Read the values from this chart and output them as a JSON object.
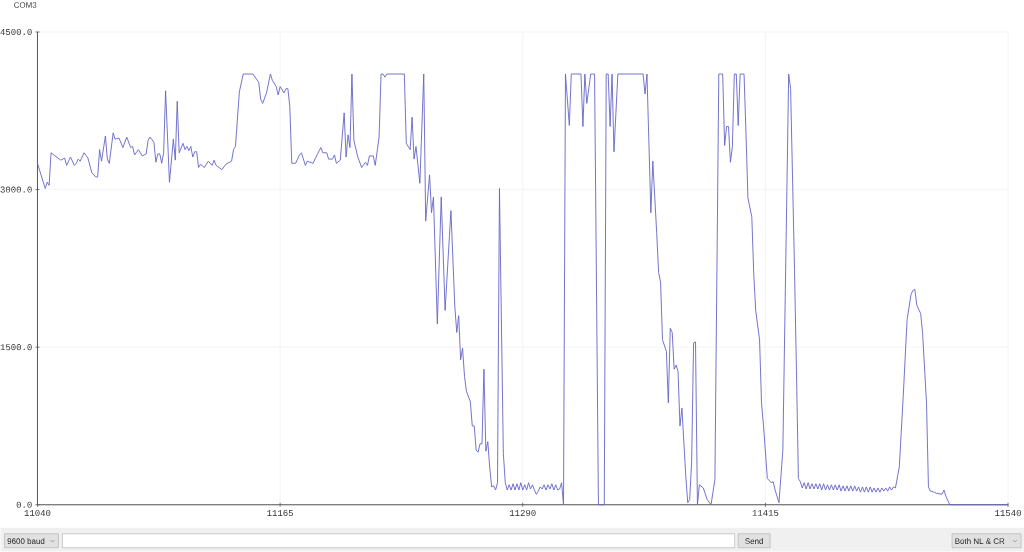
{
  "chart_data": {
    "type": "line",
    "title": "COM3",
    "x": [
      11040,
      11044,
      11045,
      11046,
      11047,
      11052,
      11054,
      11055,
      11057,
      11059,
      11060,
      11061,
      11062,
      11064,
      11066,
      11068,
      11070,
      11071,
      11072,
      11073,
      11075,
      11076,
      11077,
      11079,
      11080,
      11082,
      11084,
      11086,
      11088,
      11089,
      11090,
      11092,
      11094,
      11096,
      11097,
      11098,
      11100,
      11101,
      11102,
      11103,
      11104,
      11105,
      11106,
      11108,
      11110,
      11111,
      11112,
      11113,
      11115,
      11116,
      11117,
      11118,
      11119,
      11120,
      11121,
      11122,
      11123,
      11124,
      11126,
      11128,
      11130,
      11131,
      11132,
      11135,
      11137,
      11140,
      11141,
      11142,
      11144,
      11146,
      11151,
      11154,
      11155,
      11156,
      11158,
      11160,
      11161,
      11163,
      11164,
      11165,
      11167,
      11168,
      11169,
      11170,
      11171,
      11173,
      11175,
      11176,
      11178,
      11179,
      11182,
      11184,
      11186,
      11187,
      11189,
      11190,
      11192,
      11193,
      11194,
      11196,
      11198,
      11199,
      11200,
      11201,
      11202,
      11203,
      11205,
      11207,
      11209,
      11210,
      11211,
      11213,
      11214,
      11216,
      11217,
      11218,
      11219,
      11220,
      11229,
      11230,
      11232,
      11233,
      11234,
      11235,
      11237,
      11239,
      11240,
      11242,
      11243,
      11244,
      11246,
      11248,
      11250,
      11253,
      11255,
      11256,
      11257,
      11258,
      11259,
      11260,
      11261,
      11263,
      11264,
      11265,
      11266,
      11267,
      11268,
      11269,
      11270,
      11271,
      11272,
      11273,
      11274,
      11275,
      11276,
      11277,
      11278,
      11280,
      11281,
      11282,
      11283,
      11284,
      11285,
      11286,
      11287,
      11288,
      11289,
      11290,
      11291,
      11292,
      11293,
      11294,
      11295,
      11296,
      11297,
      11298,
      11299,
      11300,
      11301,
      11302,
      11303,
      11304,
      11305,
      11306,
      11307,
      11308,
      11309,
      11310,
      11311,
      11312,
      11314,
      11315,
      11320,
      11321,
      11322,
      11323,
      11325,
      11327,
      11329,
      11332,
      11333,
      11334,
      11335,
      11336,
      11337,
      11339,
      11352,
      11353,
      11354,
      11356,
      11357,
      11359,
      11360,
      11361,
      11362,
      11364,
      11365,
      11366,
      11367,
      11368,
      11369,
      11370,
      11371,
      11372,
      11374,
      11375,
      11376,
      11377,
      11378,
      11379,
      11380,
      11381,
      11383,
      11385,
      11387,
      11389,
      11391,
      11393,
      11394,
      11395,
      11396,
      11397,
      11398,
      11399,
      11400,
      11401,
      11402,
      11404,
      11405,
      11406,
      11408,
      11409,
      11410,
      11412,
      11413,
      11414,
      11416,
      11418,
      11419,
      11420,
      11422,
      11424,
      11427,
      11428,
      11430,
      11431,
      11432,
      11433,
      11434,
      11435,
      11436,
      11437,
      11438,
      11439,
      11440,
      11441,
      11442,
      11443,
      11444,
      11445,
      11446,
      11447,
      11448,
      11449,
      11450,
      11451,
      11452,
      11453,
      11454,
      11455,
      11456,
      11457,
      11458,
      11459,
      11460,
      11461,
      11462,
      11463,
      11464,
      11465,
      11466,
      11467,
      11468,
      11469,
      11470,
      11471,
      11472,
      11473,
      11474,
      11475,
      11476,
      11477,
      11478,
      11479,
      11480,
      11481,
      11482,
      11484,
      11486,
      11488,
      11490,
      11491,
      11492,
      11493,
      11495,
      11496,
      11498,
      11499,
      11500,
      11502,
      11503,
      11506,
      11507,
      11508,
      11510,
      11540
    ],
    "series": [
      {
        "color": "#6464c8",
        "values": [
          3250,
          3010,
          3070,
          3040,
          3350,
          3280,
          3300,
          3230,
          3310,
          3230,
          3250,
          3290,
          3270,
          3350,
          3300,
          3160,
          3120,
          3120,
          3380,
          3270,
          3510,
          3290,
          3250,
          3540,
          3480,
          3490,
          3400,
          3500,
          3400,
          3410,
          3330,
          3380,
          3320,
          3340,
          3470,
          3500,
          3450,
          3260,
          3340,
          3340,
          3250,
          3350,
          3940,
          3070,
          3480,
          3280,
          3840,
          3350,
          3440,
          3380,
          3410,
          3370,
          3410,
          3310,
          3360,
          3360,
          3210,
          3240,
          3210,
          3270,
          3230,
          3280,
          3230,
          3190,
          3240,
          3270,
          3380,
          3410,
          3930,
          4100,
          4100,
          4020,
          3860,
          3820,
          3920,
          4100,
          4040,
          3980,
          3900,
          3980,
          3920,
          3960,
          3960,
          3790,
          3250,
          3250,
          3330,
          3350,
          3230,
          3270,
          3250,
          3330,
          3400,
          3350,
          3350,
          3290,
          3290,
          3330,
          3250,
          3280,
          3730,
          3310,
          3520,
          3400,
          4100,
          3470,
          3310,
          3210,
          3260,
          3230,
          3320,
          3320,
          3230,
          3500,
          4100,
          4100,
          4070,
          4100,
          4100,
          3440,
          3380,
          3690,
          3290,
          3410,
          3060,
          4100,
          2700,
          3140,
          2780,
          2930,
          1720,
          2930,
          1850,
          2800,
          1890,
          1640,
          1800,
          1380,
          1490,
          1220,
          1080,
          980,
          750,
          750,
          520,
          500,
          580,
          580,
          1290,
          510,
          600,
          350,
          170,
          180,
          140,
          210,
          3010,
          490,
          210,
          140,
          190,
          140,
          200,
          140,
          200,
          140,
          210,
          140,
          190,
          140,
          210,
          150,
          190,
          140,
          100,
          130,
          170,
          150,
          190,
          140,
          190,
          150,
          200,
          140,
          190,
          140,
          150,
          210,
          0,
          4100,
          3610,
          4100,
          4100,
          3600,
          4100,
          3820,
          4100,
          4100,
          0,
          0,
          4100,
          4100,
          3600,
          4100,
          3360,
          4100,
          4100,
          3910,
          4100,
          2780,
          3270,
          2590,
          2210,
          2120,
          1570,
          1460,
          970,
          1680,
          1640,
          1290,
          1330,
          1270,
          750,
          920,
          270,
          20,
          50,
          410,
          1540,
          1550,
          0,
          190,
          160,
          50,
          0,
          240,
          4100,
          4100,
          3420,
          3600,
          3600,
          3260,
          3410,
          4100,
          4100,
          3610,
          4100,
          4100,
          3540,
          2920,
          2740,
          2200,
          1850,
          1570,
          970,
          760,
          250,
          210,
          220,
          140,
          20,
          520,
          4100,
          3960,
          2240,
          1280,
          250,
          220,
          160,
          210,
          150,
          210,
          150,
          200,
          150,
          200,
          150,
          200,
          140,
          200,
          140,
          190,
          140,
          190,
          140,
          190,
          140,
          190,
          130,
          180,
          130,
          180,
          130,
          180,
          130,
          180,
          130,
          170,
          120,
          170,
          120,
          170,
          120,
          170,
          120,
          160,
          120,
          160,
          120,
          160,
          130,
          160,
          130,
          170,
          140,
          170,
          160,
          360,
          1030,
          1760,
          2000,
          2040,
          2050,
          1900,
          1820,
          1630,
          970,
          170,
          130,
          120,
          110,
          100,
          140,
          80,
          0,
          0
        ]
      }
    ],
    "xlim": [
      11040,
      11540
    ],
    "ylim": [
      0,
      4500
    ],
    "xticks": [
      11040,
      11165,
      11290,
      11415,
      11540
    ],
    "yticks": [
      {
        "value": 0,
        "label": "0.0"
      },
      {
        "value": 1500,
        "label": "1500.0"
      },
      {
        "value": 3000,
        "label": "3000.0"
      },
      {
        "value": 4500,
        "label": "4500.0"
      }
    ],
    "grid": true,
    "annotations": [
      "9600 baud",
      "Send",
      "Both NL & CR"
    ]
  }
}
